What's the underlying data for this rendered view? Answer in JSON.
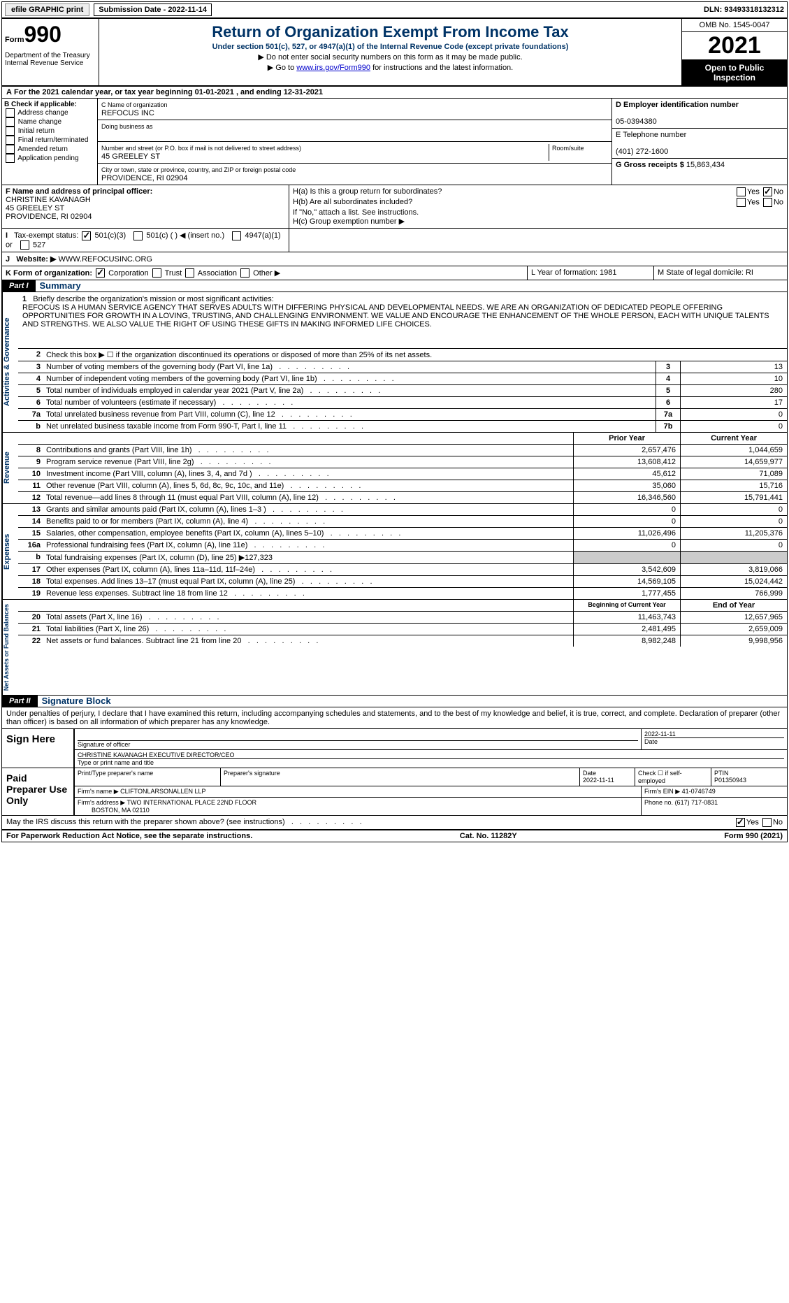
{
  "topbar": {
    "efile_btn": "efile GRAPHIC print",
    "sub_date": "Submission Date - 2022-11-14",
    "dln": "DLN: 93493318132312"
  },
  "header": {
    "form_label": "Form",
    "form_num": "990",
    "dept": "Department of the Treasury Internal Revenue Service",
    "title": "Return of Organization Exempt From Income Tax",
    "subtitle": "Under section 501(c), 527, or 4947(a)(1) of the Internal Revenue Code (except private foundations)",
    "line1": "▶ Do not enter social security numbers on this form as it may be made public.",
    "line2_pre": "▶ Go to ",
    "line2_link": "www.irs.gov/Form990",
    "line2_post": " for instructions and the latest information.",
    "omb": "OMB No. 1545-0047",
    "year": "2021",
    "open_public": "Open to Public Inspection"
  },
  "rowA": "For the 2021 calendar year, or tax year beginning 01-01-2021    , and ending 12-31-2021",
  "colB": {
    "label": "B Check if applicable:",
    "items": [
      "Address change",
      "Name change",
      "Initial return",
      "Final return/terminated",
      "Amended return",
      "Application pending"
    ]
  },
  "colC": {
    "name_label": "C Name of organization",
    "name": "REFOCUS INC",
    "dba_label": "Doing business as",
    "street_label": "Number and street (or P.O. box if mail is not delivered to street address)",
    "street": "45 GREELEY ST",
    "room_label": "Room/suite",
    "city_label": "City or town, state or province, country, and ZIP or foreign postal code",
    "city": "PROVIDENCE, RI  02904"
  },
  "colD": {
    "ein_label": "D Employer identification number",
    "ein": "05-0394380",
    "phone_label": "E Telephone number",
    "phone": "(401) 272-1600",
    "gross_label": "G Gross receipts $",
    "gross": "15,863,434"
  },
  "rowF": {
    "f_label": "F  Name and address of principal officer:",
    "f_name": "CHRISTINE KAVANAGH",
    "f_addr1": "45 GREELEY ST",
    "f_addr2": "PROVIDENCE, RI  02904",
    "ha_label": "H(a)  Is this a group return for subordinates?",
    "hb_label": "H(b)  Are all subordinates included?",
    "hb_note": "If \"No,\" attach a list. See instructions.",
    "hc_label": "H(c)  Group exemption number ▶"
  },
  "rowI": {
    "i_label": "Tax-exempt status:",
    "opt1": "501(c)(3)",
    "opt2": "501(c) (  ) ◀ (insert no.)",
    "opt3": "4947(a)(1) or",
    "opt4": "527"
  },
  "rowJ": {
    "label": "Website: ▶",
    "val": "WWW.REFOCUSINC.ORG"
  },
  "rowK": {
    "label": "K Form of organization:",
    "opts": [
      "Corporation",
      "Trust",
      "Association",
      "Other ▶"
    ],
    "L": "L Year of formation: 1981",
    "M": "M State of legal domicile: RI"
  },
  "parts": {
    "p1": "Part I",
    "p1_title": "Summary",
    "p2": "Part II",
    "p2_title": "Signature Block"
  },
  "mission": {
    "num": "1",
    "label": "Briefly describe the organization's mission or most significant activities:",
    "text": "REFOCUS IS A HUMAN SERVICE AGENCY THAT SERVES ADULTS WITH DIFFERING PHYSICAL AND DEVELOPMENTAL NEEDS. WE ARE AN ORGANIZATION OF DEDICATED PEOPLE OFFERING OPPORTUNITIES FOR GROWTH IN A LOVING, TRUSTING, AND CHALLENGING ENVIRONMENT. WE VALUE AND ENCOURAGE THE ENHANCEMENT OF THE WHOLE PERSON, EACH WITH UNIQUE TALENTS AND STRENGTHS. WE ALSO VALUE THE RIGHT OF USING THESE GIFTS IN MAKING INFORMED LIFE CHOICES."
  },
  "side_labels": {
    "gov": "Activities & Governance",
    "rev": "Revenue",
    "exp": "Expenses",
    "net": "Net Assets or Fund Balances"
  },
  "gov_lines": [
    {
      "n": "2",
      "d": "Check this box ▶ ☐  if the organization discontinued its operations or disposed of more than 25% of its net assets."
    },
    {
      "n": "3",
      "d": "Number of voting members of the governing body (Part VI, line 1a)",
      "b": "3",
      "v": "13"
    },
    {
      "n": "4",
      "d": "Number of independent voting members of the governing body (Part VI, line 1b)",
      "b": "4",
      "v": "10"
    },
    {
      "n": "5",
      "d": "Total number of individuals employed in calendar year 2021 (Part V, line 2a)",
      "b": "5",
      "v": "280"
    },
    {
      "n": "6",
      "d": "Total number of volunteers (estimate if necessary)",
      "b": "6",
      "v": "17"
    },
    {
      "n": "7a",
      "d": "Total unrelated business revenue from Part VIII, column (C), line 12",
      "b": "7a",
      "v": "0"
    },
    {
      "n": "b",
      "d": "Net unrelated business taxable income from Form 990-T, Part I, line 11",
      "b": "7b",
      "v": "0"
    }
  ],
  "two_col_hdr": {
    "prior": "Prior Year",
    "current": "Current Year"
  },
  "rev_lines": [
    {
      "n": "8",
      "d": "Contributions and grants (Part VIII, line 1h)",
      "p": "2,657,476",
      "c": "1,044,659"
    },
    {
      "n": "9",
      "d": "Program service revenue (Part VIII, line 2g)",
      "p": "13,608,412",
      "c": "14,659,977"
    },
    {
      "n": "10",
      "d": "Investment income (Part VIII, column (A), lines 3, 4, and 7d )",
      "p": "45,612",
      "c": "71,089"
    },
    {
      "n": "11",
      "d": "Other revenue (Part VIII, column (A), lines 5, 6d, 8c, 9c, 10c, and 11e)",
      "p": "35,060",
      "c": "15,716"
    },
    {
      "n": "12",
      "d": "Total revenue—add lines 8 through 11 (must equal Part VIII, column (A), line 12)",
      "p": "16,346,560",
      "c": "15,791,441"
    }
  ],
  "exp_lines": [
    {
      "n": "13",
      "d": "Grants and similar amounts paid (Part IX, column (A), lines 1–3 )",
      "p": "0",
      "c": "0"
    },
    {
      "n": "14",
      "d": "Benefits paid to or for members (Part IX, column (A), line 4)",
      "p": "0",
      "c": "0"
    },
    {
      "n": "15",
      "d": "Salaries, other compensation, employee benefits (Part IX, column (A), lines 5–10)",
      "p": "11,026,496",
      "c": "11,205,376"
    },
    {
      "n": "16a",
      "d": "Professional fundraising fees (Part IX, column (A), line 11e)",
      "p": "0",
      "c": "0"
    },
    {
      "n": "b",
      "d": "Total fundraising expenses (Part IX, column (D), line 25) ▶127,323",
      "shaded": true
    },
    {
      "n": "17",
      "d": "Other expenses (Part IX, column (A), lines 11a–11d, 11f–24e)",
      "p": "3,542,609",
      "c": "3,819,066"
    },
    {
      "n": "18",
      "d": "Total expenses. Add lines 13–17 (must equal Part IX, column (A), line 25)",
      "p": "14,569,105",
      "c": "15,024,442"
    },
    {
      "n": "19",
      "d": "Revenue less expenses. Subtract line 18 from line 12",
      "p": "1,777,455",
      "c": "766,999"
    }
  ],
  "net_hdr": {
    "begin": "Beginning of Current Year",
    "end": "End of Year"
  },
  "net_lines": [
    {
      "n": "20",
      "d": "Total assets (Part X, line 16)",
      "p": "11,463,743",
      "c": "12,657,965"
    },
    {
      "n": "21",
      "d": "Total liabilities (Part X, line 26)",
      "p": "2,481,495",
      "c": "2,659,009"
    },
    {
      "n": "22",
      "d": "Net assets or fund balances. Subtract line 21 from line 20",
      "p": "8,982,248",
      "c": "9,998,956"
    }
  ],
  "penalty": "Under penalties of perjury, I declare that I have examined this return, including accompanying schedules and statements, and to the best of my knowledge and belief, it is true, correct, and complete. Declaration of preparer (other than officer) is based on all information of which preparer has any knowledge.",
  "sign": {
    "label": "Sign Here",
    "sig_of": "Signature of officer",
    "date": "2022-11-11",
    "date_lbl": "Date",
    "name": "CHRISTINE KAVANAGH  EXECUTIVE DIRECTOR/CEO",
    "type_lbl": "Type or print name and title"
  },
  "preparer": {
    "label": "Paid Preparer Use Only",
    "h1": "Print/Type preparer's name",
    "h2": "Preparer's signature",
    "h3": "Date",
    "h3v": "2022-11-11",
    "h4": "Check ☐ if self-employed",
    "h5": "PTIN",
    "h5v": "P01350943",
    "firm_lbl": "Firm's name    ▶",
    "firm": "CLIFTONLARSONALLEN LLP",
    "ein_lbl": "Firm's EIN ▶",
    "ein": "41-0746749",
    "addr_lbl": "Firm's address ▶",
    "addr": "TWO INTERNATIONAL PLACE 22ND FLOOR",
    "addr2": "BOSTON, MA  02110",
    "phone_lbl": "Phone no.",
    "phone": "(617) 717-0831"
  },
  "discuss": "May the IRS discuss this return with the preparer shown above? (see instructions)",
  "footer": {
    "left": "For Paperwork Reduction Act Notice, see the separate instructions.",
    "mid": "Cat. No. 11282Y",
    "right_pre": "Form ",
    "right_bold": "990",
    "right_post": " (2021)"
  }
}
